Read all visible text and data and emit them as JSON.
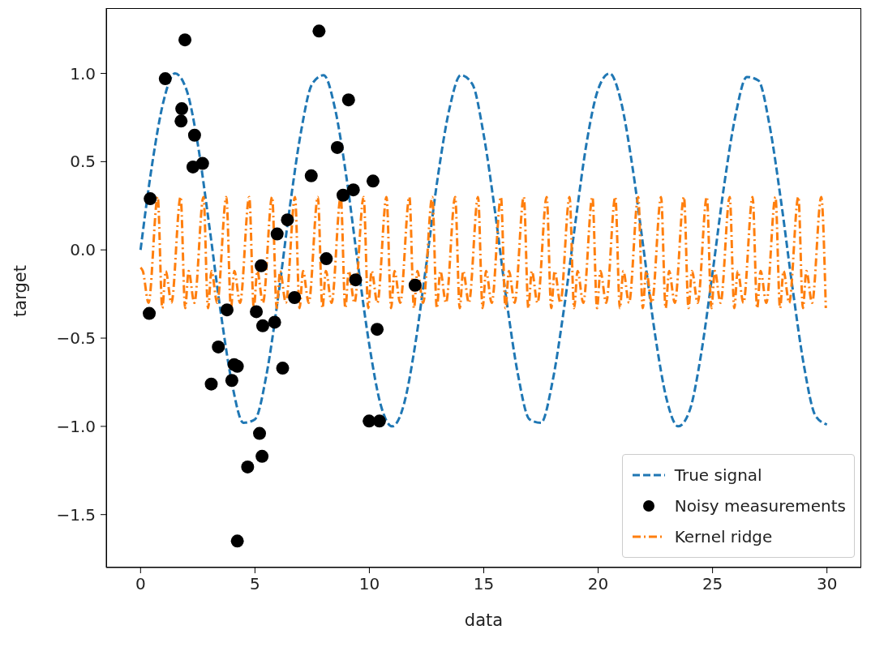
{
  "chart_data": {
    "type": "line",
    "xlabel": "data",
    "ylabel": "target",
    "xlim": [
      -1.5,
      31.5
    ],
    "ylim": [
      -1.8,
      1.37
    ],
    "xticks": [
      0,
      5,
      10,
      15,
      20,
      25,
      30
    ],
    "yticks": [
      {
        "value": -1.5,
        "label": "−1.5"
      },
      {
        "value": -1,
        "label": "−1.0"
      },
      {
        "value": -0.5,
        "label": "−0.5"
      },
      {
        "value": 0,
        "label": "0.0"
      },
      {
        "value": 0.5,
        "label": "0.5"
      },
      {
        "value": 1,
        "label": "1.0"
      }
    ],
    "grid": false,
    "legend": "bottom right",
    "series": [
      {
        "name": "True signal",
        "color": "#1f77b4",
        "line_style": "dashed",
        "marker": "none",
        "x": [
          0,
          0.5,
          1,
          1.5,
          2,
          2.5,
          3,
          3.5,
          4,
          4.5,
          5,
          5.5,
          6,
          6.5,
          7,
          7.5,
          8,
          8.5,
          9,
          9.5,
          10,
          10.5,
          11,
          11.5,
          12,
          12.5,
          13,
          13.5,
          14,
          14.5,
          15,
          15.5,
          16,
          16.5,
          17,
          17.5,
          18,
          18.5,
          19,
          19.5,
          20,
          20.5,
          21,
          21.5,
          22,
          22.5,
          23,
          23.5,
          24,
          24.5,
          25,
          25.5,
          26,
          26.5,
          27,
          27.5,
          28,
          28.5,
          29,
          29.5,
          30
        ],
        "values": [
          0,
          0.48,
          0.84,
          1,
          0.91,
          0.6,
          0.14,
          -0.35,
          -0.76,
          -0.98,
          -0.96,
          -0.71,
          -0.28,
          0.22,
          0.66,
          0.94,
          0.99,
          0.8,
          0.41,
          -0.08,
          -0.54,
          -0.88,
          -1,
          -0.88,
          -0.54,
          -0.07,
          0.42,
          0.8,
          0.99,
          0.94,
          0.65,
          0.21,
          -0.29,
          -0.71,
          -0.96,
          -0.98,
          -0.75,
          -0.34,
          0.15,
          0.61,
          0.91,
          1,
          0.84,
          0.47,
          -0.01,
          -0.49,
          -0.85,
          -1,
          -0.91,
          -0.59,
          -0.13,
          0.36,
          0.76,
          0.98,
          0.96,
          0.7,
          0.27,
          -0.22,
          -0.66,
          -0.94,
          -0.99
        ]
      },
      {
        "name": "Noisy measurements",
        "type": "scatter",
        "color": "#000000",
        "marker": "circle",
        "x": [
          0.38,
          0.42,
          1.08,
          1.94,
          1.8,
          1.77,
          2.36,
          2.29,
          2.71,
          3.78,
          3.4,
          3.09,
          3.99,
          4.09,
          4.23,
          4.23,
          4.68,
          5.31,
          5.2,
          5.06,
          5.27,
          5.34,
          5.86,
          5.97,
          6.42,
          6.21,
          6.73,
          7.46,
          7.8,
          8.12,
          8.6,
          9.09,
          8.85,
          9.3,
          9.4,
          10.16,
          10.34,
          9.99,
          10.44,
          12
        ],
        "values": [
          -0.36,
          0.29,
          0.97,
          1.19,
          0.8,
          0.73,
          0.65,
          0.47,
          0.49,
          -0.34,
          -0.55,
          -0.76,
          -0.74,
          -0.65,
          -0.66,
          -1.65,
          -1.23,
          -1.17,
          -1.04,
          -0.35,
          -0.09,
          -0.43,
          -0.41,
          0.09,
          0.17,
          -0.67,
          -0.27,
          0.42,
          1.24,
          -0.05,
          0.58,
          0.85,
          0.31,
          0.34,
          -0.17,
          0.39,
          -0.45,
          -0.97,
          -0.97,
          -0.2
        ]
      },
      {
        "name": "Kernel ridge",
        "color": "#ff7f0e",
        "line_style": "dashdot",
        "marker": "none",
        "x": [
          0,
          0.1,
          0.35,
          0.75,
          0.95,
          1.1,
          1.35,
          1.75,
          1.95,
          2.1,
          2.35,
          2.75,
          2.95,
          3.1,
          3.35,
          3.75,
          3.95,
          4.1,
          4.35,
          4.75,
          4.95,
          5.1,
          5.35,
          5.75,
          5.95,
          6.1,
          6.35,
          6.75,
          6.95,
          7.1,
          7.35,
          7.75,
          7.95,
          8.1,
          8.35,
          8.75,
          8.95,
          9.1,
          9.35,
          9.75,
          9.95,
          10.1,
          10.35,
          10.75,
          10.95,
          11.1,
          11.35,
          11.75,
          11.95,
          12.1,
          12.35,
          12.75,
          12.95,
          13.1,
          13.35,
          13.75,
          13.95,
          14.1,
          14.35,
          14.75,
          14.95,
          15.1,
          15.35,
          15.75,
          15.95,
          16.1,
          16.35,
          16.75,
          16.95,
          17.1,
          17.35,
          17.75,
          17.95,
          18.1,
          18.35,
          18.75,
          18.95,
          19.1,
          19.35,
          19.75,
          19.95,
          20.1,
          20.35,
          20.75,
          20.95,
          21.1,
          21.35,
          21.75,
          21.95,
          22.1,
          22.35,
          22.75,
          22.95,
          23.1,
          23.35,
          23.75,
          23.95,
          24.1,
          24.35,
          24.75,
          24.95,
          25.1,
          25.35,
          25.75,
          25.95,
          26.1,
          26.35,
          26.75,
          26.95,
          27.1,
          27.35,
          27.75,
          27.95,
          28.1,
          28.35,
          28.75,
          28.95,
          29.1,
          29.35,
          29.75,
          29.95
        ],
        "values": [
          -0.1,
          -0.12,
          -0.3,
          0.3,
          -0.33,
          -0.12,
          -0.3,
          0.3,
          -0.33,
          -0.12,
          -0.3,
          0.3,
          -0.33,
          -0.12,
          -0.3,
          0.3,
          -0.33,
          -0.12,
          -0.3,
          0.3,
          -0.33,
          -0.12,
          -0.3,
          0.3,
          -0.33,
          -0.12,
          -0.3,
          0.3,
          -0.33,
          -0.12,
          -0.3,
          0.3,
          -0.33,
          -0.12,
          -0.3,
          0.3,
          -0.33,
          -0.12,
          -0.3,
          0.3,
          -0.33,
          -0.12,
          -0.3,
          0.3,
          -0.33,
          -0.12,
          -0.3,
          0.3,
          -0.33,
          -0.12,
          -0.3,
          0.3,
          -0.33,
          -0.12,
          -0.3,
          0.3,
          -0.33,
          -0.12,
          -0.3,
          0.3,
          -0.33,
          -0.12,
          -0.3,
          0.3,
          -0.33,
          -0.12,
          -0.3,
          0.3,
          -0.33,
          -0.12,
          -0.3,
          0.3,
          -0.33,
          -0.12,
          -0.3,
          0.3,
          -0.33,
          -0.12,
          -0.3,
          0.3,
          -0.33,
          -0.12,
          -0.3,
          0.3,
          -0.33,
          -0.12,
          -0.3,
          0.3,
          -0.33,
          -0.12,
          -0.3,
          0.3,
          -0.33,
          -0.12,
          -0.3,
          0.3,
          -0.33,
          -0.12,
          -0.3,
          0.3,
          -0.33,
          -0.12,
          -0.3,
          0.3,
          -0.33,
          -0.12,
          -0.3,
          0.3,
          -0.33,
          -0.12,
          -0.3,
          0.3,
          -0.33,
          -0.12,
          -0.3,
          0.3,
          -0.33,
          -0.12,
          -0.3,
          0.3,
          -0.33
        ]
      }
    ]
  }
}
